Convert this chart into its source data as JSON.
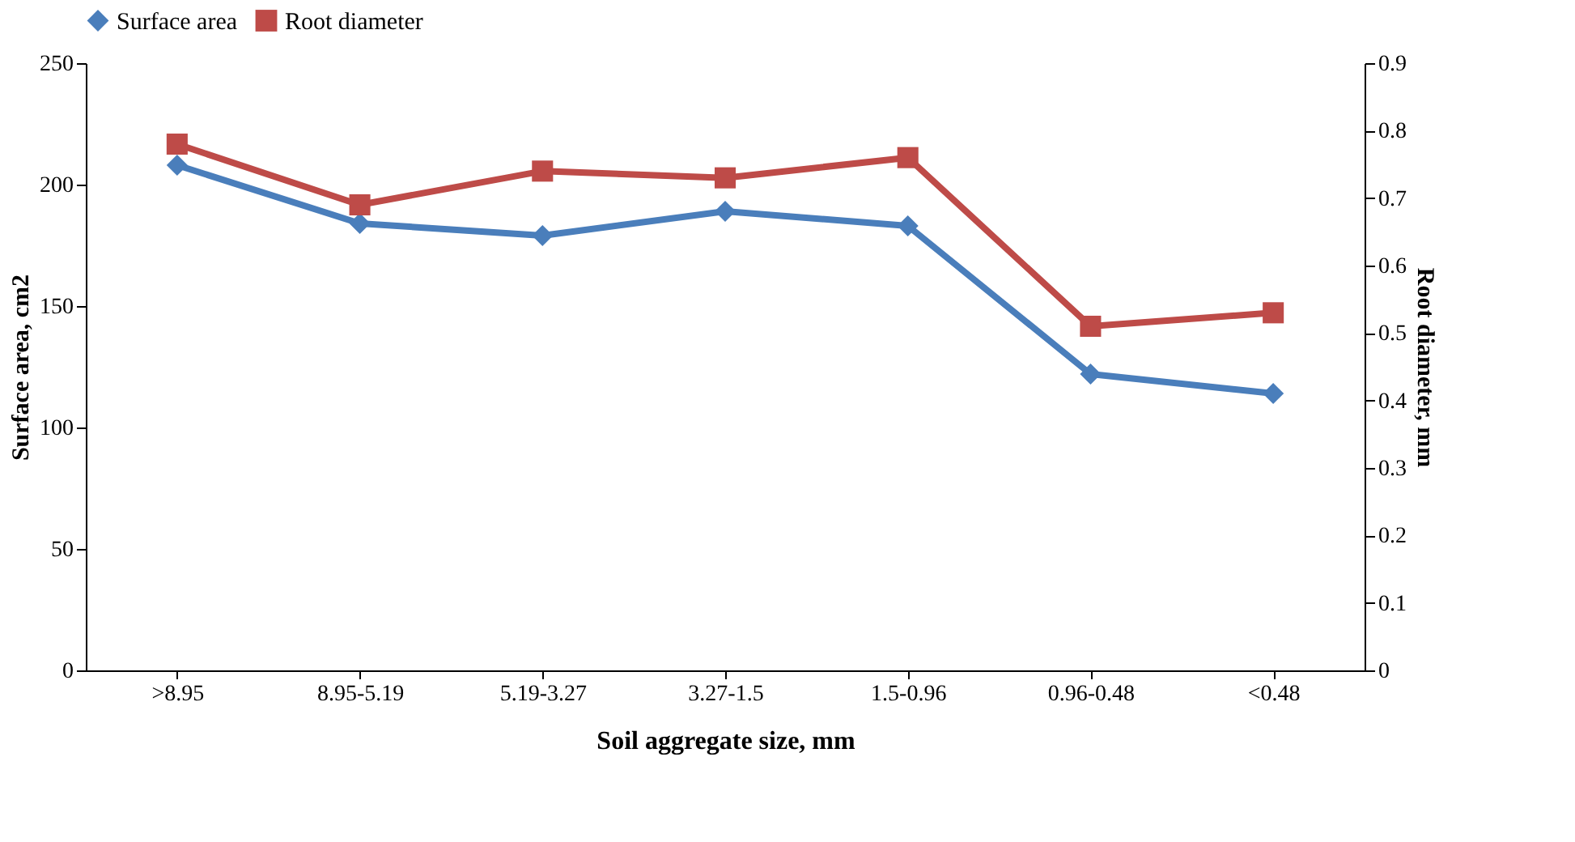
{
  "chart_data": {
    "type": "line",
    "xlabel": "Soil aggregate size, mm",
    "ylabel": "Surface area, cm2",
    "y2label": "Root diameter, mm",
    "categories": [
      ">8.95",
      "8.95-5.19",
      "5.19-3.27",
      "3.27-1.5",
      "1.5-0.96",
      "0.96-0.48",
      "<0.48"
    ],
    "series": [
      {
        "name": "Surface area",
        "color": "#4a7ebb",
        "marker": "diamond",
        "values": [
          208,
          184,
          179,
          189,
          183,
          122,
          114
        ]
      },
      {
        "name": "Root diameter",
        "color": "#be4b48",
        "marker": "square",
        "axis": "y2",
        "values": [
          0.78,
          0.69,
          0.74,
          0.73,
          0.76,
          0.51,
          0.53
        ]
      }
    ],
    "ylim": [
      0,
      250
    ],
    "yticks": [
      0,
      50,
      100,
      150,
      200,
      250
    ],
    "y2lim": [
      0,
      0.9
    ],
    "y2ticks": [
      0,
      0.1,
      0.2,
      0.3,
      0.4,
      0.5,
      0.6,
      0.7,
      0.8,
      0.9
    ],
    "grid": false,
    "legend": "top",
    "line_style": "solid"
  }
}
